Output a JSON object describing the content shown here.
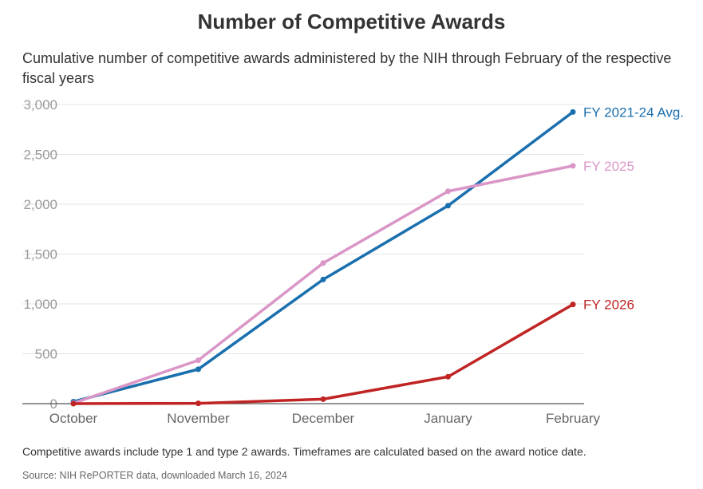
{
  "title": "Number of Competitive Awards",
  "subtitle": "Cumulative number of competitive awards administered by the NIH through February of the respective fiscal years",
  "note": "Competitive awards include type 1 and type 2 awards. Timeframes are calculated based on the award notice date.",
  "source": "Source: NIH RePORTER data, downloaded March 16, 2024",
  "chart_data": {
    "type": "line",
    "title": "Number of Competitive Awards",
    "xlabel": "",
    "ylabel": "",
    "categories": [
      "October",
      "November",
      "December",
      "January",
      "February"
    ],
    "ylim": [
      0,
      3000
    ],
    "yticks": [
      0,
      500,
      1000,
      1500,
      2000,
      2500,
      3000
    ],
    "ytick_labels": [
      "0",
      "500",
      "1,000",
      "1,500",
      "2,000",
      "2,500",
      "3,000"
    ],
    "grid": true,
    "legend": "direct labels at line ends",
    "series": [
      {
        "name": "FY 2021-24 Avg.",
        "color": "#1a6fae",
        "values": [
          20,
          345,
          1245,
          1985,
          2925
        ]
      },
      {
        "name": "FY 2025",
        "color": "#d996c7",
        "values": [
          5,
          435,
          1410,
          2130,
          2385
        ]
      },
      {
        "name": "FY 2026",
        "color": "#c02424",
        "values": [
          0,
          3,
          45,
          270,
          995
        ]
      }
    ]
  }
}
